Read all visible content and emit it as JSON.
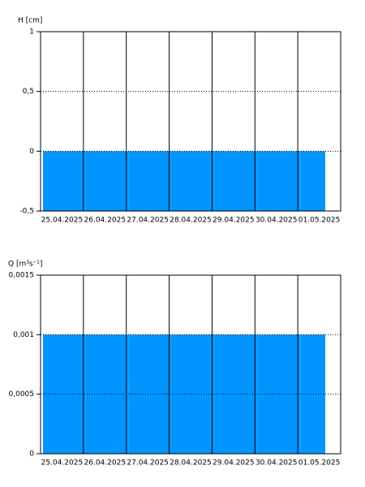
{
  "chart_data": [
    {
      "type": "area",
      "y_label": "H [cm]",
      "categories": [
        "25.04.2025",
        "26.04.2025",
        "27.04.2025",
        "28.04.2025",
        "29.04.2025",
        "30.04.2025",
        "01.05.2025"
      ],
      "values": [
        0,
        0,
        0,
        0,
        0,
        0,
        0
      ],
      "color": "#0095ff",
      "ylim": [
        -0.5,
        1
      ],
      "yticks": [
        {
          "value": -0.5,
          "label": "-0,5"
        },
        0,
        {
          "value": 0.5,
          "label": "0,5"
        },
        1
      ],
      "grid": true
    },
    {
      "type": "area",
      "y_label": "Q [m³s⁻¹]",
      "categories": [
        "25.04.2025",
        "26.04.2025",
        "27.04.2025",
        "28.04.2025",
        "29.04.2025",
        "30.04.2025",
        "01.05.2025"
      ],
      "values": [
        0.001,
        0.001,
        0.001,
        0.001,
        0.001,
        0.001,
        0.001
      ],
      "color": "#0095ff",
      "ylim": [
        0,
        0.0015
      ],
      "yticks": [
        0,
        {
          "value": 0.0005,
          "label": "0,0005"
        },
        {
          "value": 0.001,
          "label": "0,001"
        },
        {
          "value": 0.0015,
          "label": "0,0015"
        }
      ],
      "grid": true
    }
  ]
}
